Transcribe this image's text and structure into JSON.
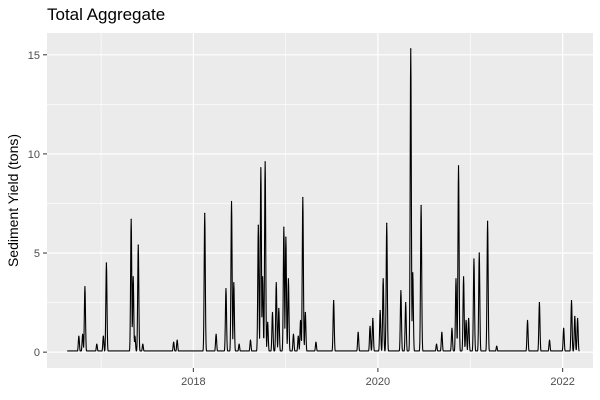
{
  "chart_data": {
    "type": "line",
    "title": "Total Aggregate",
    "xlabel": "",
    "ylabel": "Sediment Yield (tons)",
    "xlim": [
      "2016-06-01",
      "2022-05-01"
    ],
    "ylim": [
      -0.8,
      16.1
    ],
    "x_ticks": [
      "2018",
      "2020",
      "2022"
    ],
    "x_tick_dates": [
      "2018-01-01",
      "2020-01-01",
      "2022-01-01"
    ],
    "y_ticks": [
      0,
      5,
      10,
      15
    ],
    "grid": true,
    "legend": "none",
    "colors": {
      "panel": "#EBEBEB",
      "grid": "#FFFFFF",
      "line": "#000000"
    },
    "series": [
      {
        "peaks": [
          {
            "x": "2016-10-05",
            "y": 0.8
          },
          {
            "x": "2016-10-20",
            "y": 0.9
          },
          {
            "x": "2016-10-29",
            "y": 3.3
          },
          {
            "x": "2016-12-15",
            "y": 0.4
          },
          {
            "x": "2017-01-10",
            "y": 0.8
          },
          {
            "x": "2017-01-22",
            "y": 4.5
          },
          {
            "x": "2017-04-30",
            "y": 6.7
          },
          {
            "x": "2017-05-08",
            "y": 3.8
          },
          {
            "x": "2017-05-15",
            "y": 0.8
          },
          {
            "x": "2017-05-28",
            "y": 5.4
          },
          {
            "x": "2017-06-15",
            "y": 0.4
          },
          {
            "x": "2017-10-15",
            "y": 0.5
          },
          {
            "x": "2017-10-29",
            "y": 0.6
          },
          {
            "x": "2018-02-15",
            "y": 7.0
          },
          {
            "x": "2018-04-01",
            "y": 0.9
          },
          {
            "x": "2018-05-10",
            "y": 3.2
          },
          {
            "x": "2018-06-01",
            "y": 7.6
          },
          {
            "x": "2018-06-10",
            "y": 3.5
          },
          {
            "x": "2018-07-01",
            "y": 0.4
          },
          {
            "x": "2018-08-15",
            "y": 0.6
          },
          {
            "x": "2018-09-15",
            "y": 6.4
          },
          {
            "x": "2018-09-25",
            "y": 9.3
          },
          {
            "x": "2018-10-02",
            "y": 3.8
          },
          {
            "x": "2018-10-12",
            "y": 9.6
          },
          {
            "x": "2018-10-22",
            "y": 1.5
          },
          {
            "x": "2018-11-10",
            "y": 2.0
          },
          {
            "x": "2018-11-25",
            "y": 3.5
          },
          {
            "x": "2018-12-05",
            "y": 2.2
          },
          {
            "x": "2018-12-25",
            "y": 6.3
          },
          {
            "x": "2019-01-02",
            "y": 5.8
          },
          {
            "x": "2019-01-12",
            "y": 3.7
          },
          {
            "x": "2019-02-01",
            "y": 0.9
          },
          {
            "x": "2019-02-20",
            "y": 0.8
          },
          {
            "x": "2019-03-01",
            "y": 1.6
          },
          {
            "x": "2019-03-10",
            "y": 7.8
          },
          {
            "x": "2019-03-20",
            "y": 2.0
          },
          {
            "x": "2019-05-01",
            "y": 0.5
          },
          {
            "x": "2019-07-10",
            "y": 2.6
          },
          {
            "x": "2019-10-15",
            "y": 1.0
          },
          {
            "x": "2019-12-01",
            "y": 1.3
          },
          {
            "x": "2019-12-12",
            "y": 1.7
          },
          {
            "x": "2020-01-10",
            "y": 2.1
          },
          {
            "x": "2020-01-22",
            "y": 3.7
          },
          {
            "x": "2020-02-05",
            "y": 6.5
          },
          {
            "x": "2020-04-01",
            "y": 3.1
          },
          {
            "x": "2020-04-20",
            "y": 2.5
          },
          {
            "x": "2020-05-10",
            "y": 15.3
          },
          {
            "x": "2020-05-18",
            "y": 4.0
          },
          {
            "x": "2020-06-20",
            "y": 7.4
          },
          {
            "x": "2020-08-20",
            "y": 0.4
          },
          {
            "x": "2020-09-10",
            "y": 1.0
          },
          {
            "x": "2020-10-20",
            "y": 1.2
          },
          {
            "x": "2020-11-05",
            "y": 3.7
          },
          {
            "x": "2020-11-15",
            "y": 9.4
          },
          {
            "x": "2020-12-05",
            "y": 3.8
          },
          {
            "x": "2020-12-15",
            "y": 1.6
          },
          {
            "x": "2020-12-25",
            "y": 1.7
          },
          {
            "x": "2021-01-15",
            "y": 4.7
          },
          {
            "x": "2021-02-05",
            "y": 5.0
          },
          {
            "x": "2021-03-10",
            "y": 6.6
          },
          {
            "x": "2021-04-15",
            "y": 0.3
          },
          {
            "x": "2021-08-15",
            "y": 1.6
          },
          {
            "x": "2021-10-01",
            "y": 2.5
          },
          {
            "x": "2021-11-10",
            "y": 0.6
          },
          {
            "x": "2022-01-05",
            "y": 1.2
          },
          {
            "x": "2022-02-05",
            "y": 2.6
          },
          {
            "x": "2022-02-18",
            "y": 1.8
          },
          {
            "x": "2022-03-01",
            "y": 1.7
          }
        ]
      }
    ]
  }
}
